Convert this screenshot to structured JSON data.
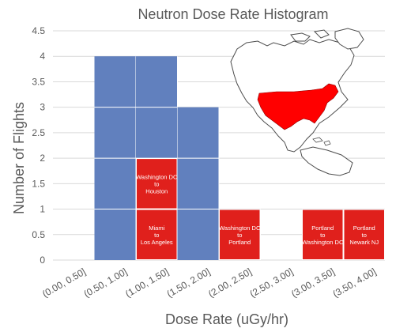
{
  "chart_data": {
    "type": "bar",
    "title": "Neutron Dose Rate Histogram",
    "xlabel": "Dose Rate (uGy/hr)",
    "ylabel": "Number of Flights",
    "categories": [
      "(0.00, 0.50]",
      "(0.50, 1.00]",
      "(1.00, 1.50]",
      "(1.50, 2.00]",
      "(2.00, 2.50]",
      "(2.50, 3.00]",
      "(3.00, 3.50]",
      "(3.50, 4.00]"
    ],
    "values": [
      0,
      4,
      4,
      3,
      1,
      0,
      1,
      1
    ],
    "ylim": [
      0,
      4.5
    ],
    "yticks": [
      "0",
      "0.5",
      "1",
      "1.5",
      "2",
      "2.5",
      "3",
      "3.5",
      "4",
      "4.5"
    ],
    "grid": true,
    "colors": {
      "bar": "#6180be",
      "highlight": "#e0201c",
      "grid": "#d9d9d9",
      "text": "#595959"
    },
    "highlighted_segments": [
      {
        "category": "(1.00, 1.50]",
        "from": 1,
        "to": 2,
        "label": [
          "Washington DC",
          "to",
          "Houston"
        ]
      },
      {
        "category": "(1.00, 1.50]",
        "from": 0,
        "to": 1,
        "label": [
          "Miami",
          "to",
          "Los Angeles"
        ]
      },
      {
        "category": "(2.00, 2.50]",
        "from": 0,
        "to": 1,
        "label": [
          "Washington DC",
          "to",
          "Portland"
        ]
      },
      {
        "category": "(3.00, 3.50]",
        "from": 0,
        "to": 1,
        "label": [
          "Portland",
          "to",
          "Washington DC"
        ]
      },
      {
        "category": "(3.50, 4.00]",
        "from": 0,
        "to": 1,
        "label": [
          "Portland",
          "to",
          "Newark NJ"
        ]
      }
    ]
  },
  "inset_map": {
    "icon": "north-america-map-icon",
    "highlight_region": "United States",
    "land_color": "#ffffff",
    "highlight_color": "#ff0000"
  }
}
